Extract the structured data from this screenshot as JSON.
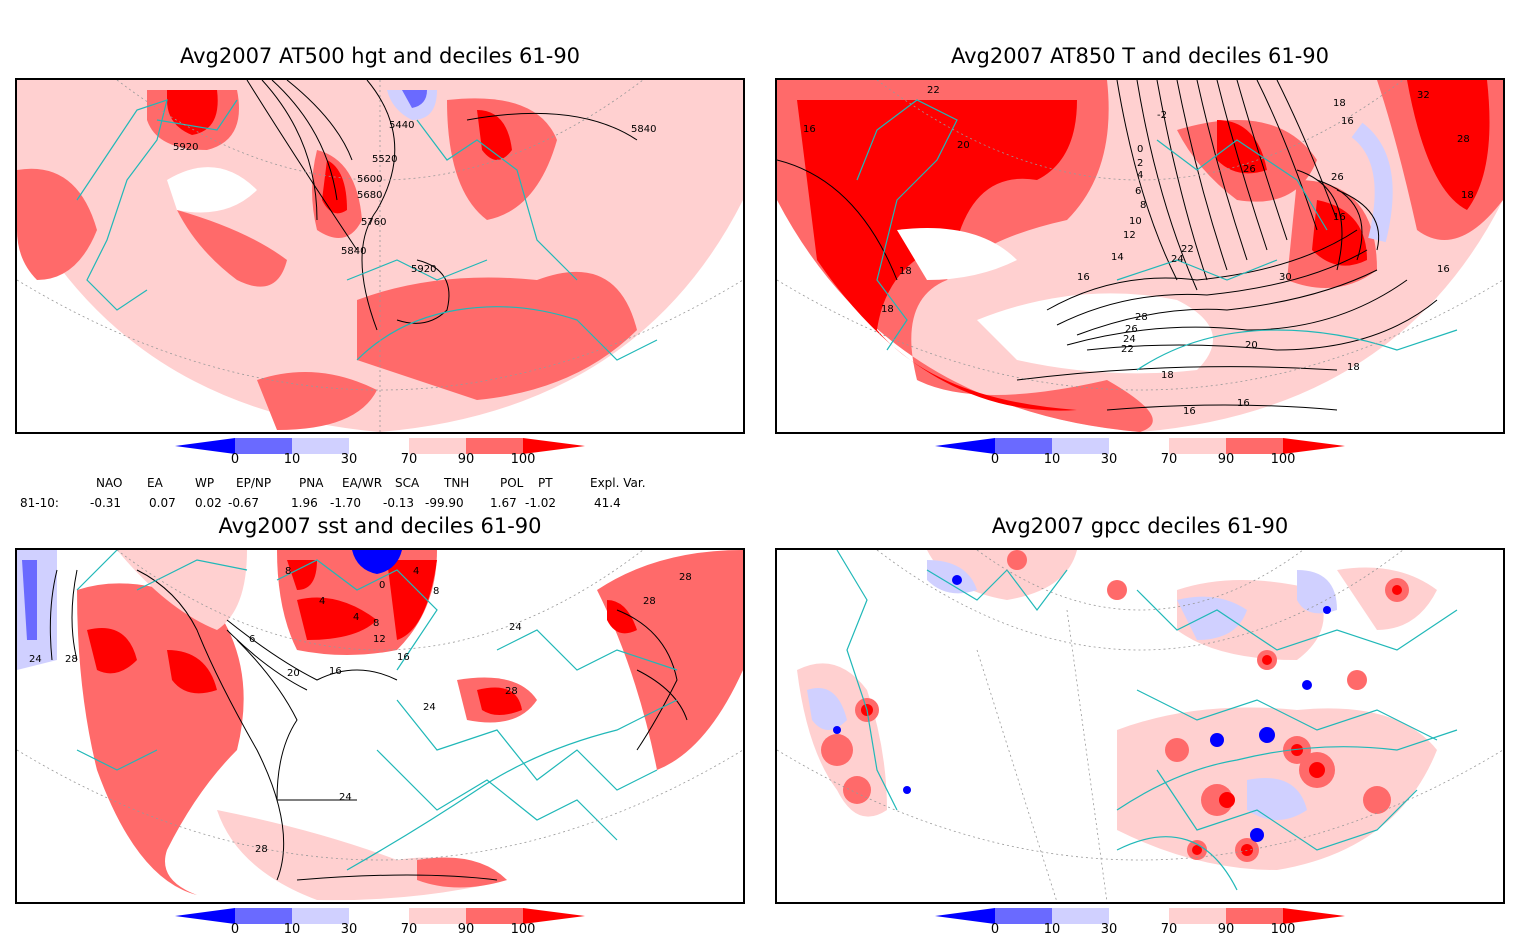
{
  "panels": [
    {
      "title": "Avg2007 AT500 hgt and deciles 61-90",
      "contour_labels": [
        "5920",
        "5440",
        "5520",
        "5600",
        "5680",
        "5760",
        "5840",
        "5920",
        "5840"
      ]
    },
    {
      "title": "Avg2007 AT850 T and deciles 61-90",
      "contour_labels": [
        "22",
        "20",
        "16",
        "18",
        "18",
        "-2",
        "0",
        "2",
        "4",
        "6",
        "8",
        "10",
        "12",
        "14",
        "16",
        "22",
        "24",
        "28",
        "26",
        "24",
        "22",
        "20",
        "18",
        "16",
        "16",
        "18",
        "18",
        "16",
        "26",
        "26",
        "16",
        "30",
        "32",
        "28",
        "18",
        "16"
      ]
    },
    {
      "title": "Avg2007 sst and deciles 61-90",
      "contour_labels": [
        "24",
        "28",
        "6",
        "20",
        "16",
        "8",
        "4",
        "4",
        "8",
        "12",
        "0",
        "4",
        "8",
        "28",
        "28",
        "24",
        "16",
        "24",
        "28",
        "24",
        "28"
      ]
    },
    {
      "title": "Avg2007 gpcc deciles 61-90",
      "contour_labels": []
    }
  ],
  "colorbar": {
    "ticks": [
      "0",
      "10",
      "30",
      "70",
      "90",
      "100"
    ],
    "colors": {
      "deep_blue": "#0000ff",
      "mid_blue": "#6a6aff",
      "light_blue": "#d0d0ff",
      "white": "#ffffff",
      "light_red": "#ffd0d0",
      "mid_red": "#ff6a6a",
      "deep_red": "#ff0000"
    }
  },
  "indices": {
    "headers": [
      "NAO",
      "EA",
      "WP",
      "EP/NP",
      "PNA",
      "EA/WR",
      "SCA",
      "TNH",
      "POL",
      "PT",
      "Expl. Var."
    ],
    "row_label": "81-10:",
    "values": [
      "-0.31",
      "0.07",
      "0.02",
      "-0.67",
      "1.96",
      "-1.70",
      "-0.13",
      "-99.90",
      "1.67",
      "-1.02",
      "41.4"
    ]
  },
  "map_style": {
    "coast_color": "#20b8b8",
    "contour_color": "#000000",
    "grid_color": "#999999"
  }
}
